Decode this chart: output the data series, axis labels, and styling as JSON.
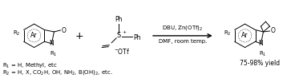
{
  "bg_color": "#ffffff",
  "text_color": "#000000",
  "figsize": [
    3.78,
    0.98
  ],
  "dpi": 100,
  "label_r1": "R$_1$ = H, Methyl, etc",
  "label_r2": "R$_2$ = H, X, CO$_2$H, OH, NH$_2$, B(OH)$_2$, etc.",
  "conditions_top": "DBU, Zn(OTf)$_2$",
  "conditions_bot": "DMF, room temp.",
  "yield_text": "75-98% yield",
  "font_size_chem": 6.0,
  "font_size_label": 5.0,
  "font_size_atom": 5.5,
  "lw": 0.7
}
